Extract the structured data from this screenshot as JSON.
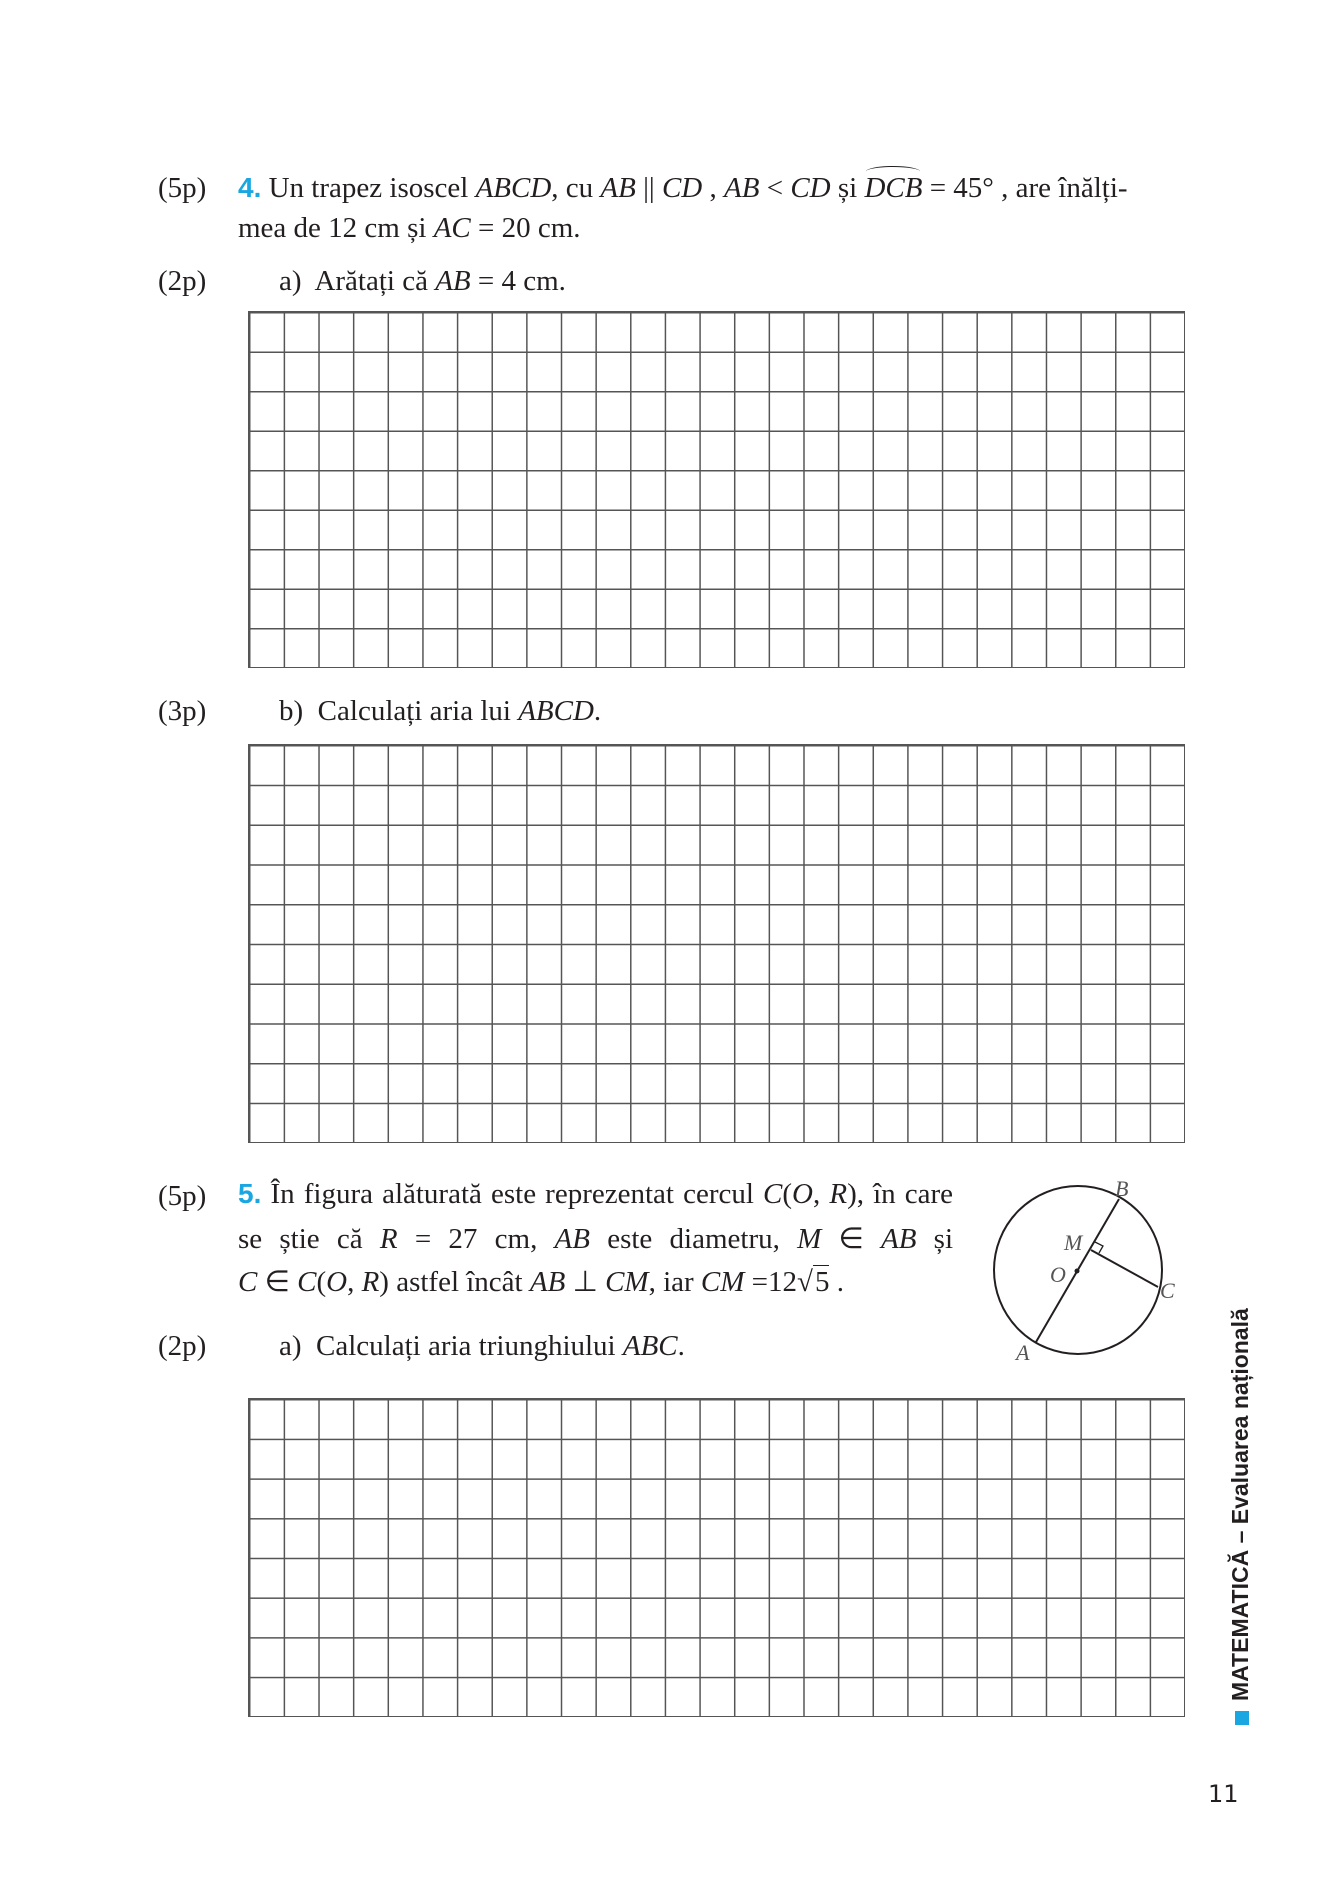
{
  "problem4": {
    "points": "(5p)",
    "number": "4.",
    "l1": [
      "Un trapez isoscel ",
      "ABCD",
      ", cu  ",
      "AB",
      " || ",
      "CD",
      " , ",
      "AB",
      " < ",
      "CD",
      " și  ",
      "DCB",
      " = 45° , are înălți-"
    ],
    "l2": [
      "mea de 12 cm și ",
      "AC",
      " = 20 cm."
    ],
    "a": {
      "points": "(2p)",
      "label": "a)",
      "text": "Arătați că ",
      "math": "AB",
      "rest": " = 4 cm."
    },
    "b": {
      "points": "(3p)",
      "label": "b)",
      "text": "Calculați aria lui ",
      "math": "ABCD",
      "rest": "."
    }
  },
  "problem5": {
    "points": "(5p)",
    "number": "5.",
    "l1": [
      "În figura alăturată este reprezentat cercul ",
      "C",
      "(",
      "O",
      ", ",
      "R",
      "), în care"
    ],
    "l2": [
      "se știe că ",
      "R",
      " = 27 cm, ",
      "AB",
      " este diametru, ",
      "M",
      " ∈ ",
      "AB",
      " și"
    ],
    "l3": [
      "C",
      " ∈ ",
      "C",
      "(",
      "O",
      ", ",
      "R",
      ") astfel încât ",
      "AB",
      " ⊥ ",
      "CM",
      ", iar ",
      "CM",
      " =12",
      "√",
      "5",
      " ."
    ],
    "a": {
      "points": "(2p)",
      "label": "a)",
      "text": "Calculați aria triunghiului ",
      "math": "ABC",
      "rest": "."
    },
    "figure": {
      "A": "A",
      "B": "B",
      "C": "C",
      "M": "M",
      "O": "O"
    }
  },
  "sidebar": "MATEMATICĂ – Evaluarea națională",
  "page_number": "11",
  "accent_color": "#1aa6e0"
}
